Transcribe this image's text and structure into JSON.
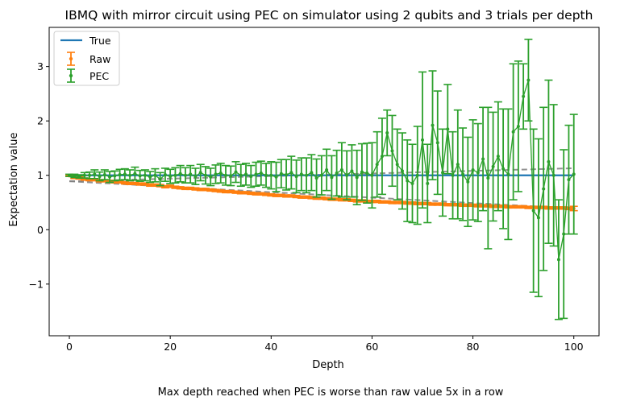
{
  "chart_data": {
    "type": "line",
    "title": "IBMQ with mirror circuit using PEC on simulator using 2 qubits and 3 trials per depth",
    "xlabel": "Depth",
    "ylabel": "Expectation value",
    "caption": "Max depth reached when PEC is worse than raw value 5x in a row",
    "xlim": [
      -4,
      105
    ],
    "ylim": [
      -1.95,
      3.72
    ],
    "xticks": [
      0,
      20,
      40,
      60,
      80,
      100
    ],
    "yticks": [
      -1,
      0,
      1,
      2,
      3
    ],
    "ytick_labels": [
      "−1",
      "0",
      "1",
      "2",
      "3"
    ],
    "legend": {
      "position": "top-left",
      "entries": [
        "True",
        "Raw",
        "PEC"
      ]
    },
    "colors": {
      "true": "#1f77b4",
      "raw": "#ff7f0e",
      "pec": "#2ca02c",
      "fit": "#7f7f7f"
    },
    "series": [
      {
        "name": "True",
        "kind": "line",
        "x": [
          0,
          100
        ],
        "y": [
          1.0,
          1.0
        ]
      },
      {
        "name": "Raw",
        "kind": "errorbar",
        "x": [
          0,
          1,
          2,
          3,
          4,
          5,
          6,
          7,
          8,
          9,
          10,
          11,
          12,
          13,
          14,
          15,
          16,
          17,
          18,
          19,
          20,
          21,
          22,
          23,
          24,
          25,
          26,
          27,
          28,
          29,
          30,
          31,
          32,
          33,
          34,
          35,
          36,
          37,
          38,
          39,
          40,
          41,
          42,
          43,
          44,
          45,
          46,
          47,
          48,
          49,
          50,
          51,
          52,
          53,
          54,
          55,
          56,
          57,
          58,
          59,
          60,
          61,
          62,
          63,
          64,
          65,
          66,
          67,
          68,
          69,
          70,
          71,
          72,
          73,
          74,
          75,
          76,
          77,
          78,
          79,
          80,
          81,
          82,
          83,
          84,
          85,
          86,
          87,
          88,
          89,
          90,
          91,
          92,
          93,
          94,
          95,
          96,
          97,
          98,
          99,
          100
        ],
        "y": [
          0.99,
          0.96,
          0.95,
          0.93,
          0.92,
          0.92,
          0.9,
          0.9,
          0.89,
          0.88,
          0.88,
          0.86,
          0.85,
          0.85,
          0.84,
          0.84,
          0.82,
          0.82,
          0.81,
          0.79,
          0.8,
          0.78,
          0.77,
          0.76,
          0.76,
          0.75,
          0.74,
          0.74,
          0.73,
          0.72,
          0.71,
          0.7,
          0.7,
          0.69,
          0.68,
          0.68,
          0.67,
          0.66,
          0.66,
          0.65,
          0.64,
          0.63,
          0.63,
          0.62,
          0.62,
          0.61,
          0.6,
          0.6,
          0.59,
          0.58,
          0.58,
          0.57,
          0.56,
          0.56,
          0.55,
          0.55,
          0.54,
          0.53,
          0.53,
          0.52,
          0.52,
          0.52,
          0.51,
          0.51,
          0.5,
          0.5,
          0.5,
          0.49,
          0.49,
          0.48,
          0.48,
          0.48,
          0.47,
          0.47,
          0.47,
          0.46,
          0.46,
          0.46,
          0.45,
          0.45,
          0.45,
          0.44,
          0.44,
          0.44,
          0.43,
          0.43,
          0.43,
          0.42,
          0.42,
          0.42,
          0.42,
          0.41,
          0.41,
          0.41,
          0.41,
          0.4,
          0.4,
          0.4,
          0.4,
          0.39,
          0.39
        ],
        "err": [
          0.01,
          0.02,
          0.02,
          0.02,
          0.02,
          0.02,
          0.02,
          0.02,
          0.02,
          0.02,
          0.02,
          0.02,
          0.02,
          0.02,
          0.02,
          0.02,
          0.02,
          0.02,
          0.02,
          0.02,
          0.02,
          0.02,
          0.02,
          0.02,
          0.02,
          0.02,
          0.02,
          0.02,
          0.02,
          0.02,
          0.02,
          0.02,
          0.02,
          0.02,
          0.02,
          0.02,
          0.02,
          0.02,
          0.02,
          0.02,
          0.02,
          0.02,
          0.02,
          0.02,
          0.02,
          0.02,
          0.02,
          0.02,
          0.02,
          0.02,
          0.02,
          0.02,
          0.02,
          0.02,
          0.02,
          0.02,
          0.02,
          0.02,
          0.02,
          0.02,
          0.02,
          0.02,
          0.02,
          0.02,
          0.02,
          0.02,
          0.02,
          0.02,
          0.02,
          0.02,
          0.02,
          0.02,
          0.02,
          0.02,
          0.02,
          0.02,
          0.02,
          0.02,
          0.02,
          0.02,
          0.02,
          0.02,
          0.02,
          0.02,
          0.02,
          0.02,
          0.02,
          0.02,
          0.02,
          0.02,
          0.02,
          0.02,
          0.02,
          0.02,
          0.02,
          0.02,
          0.02,
          0.02,
          0.02,
          0.02,
          0.04
        ]
      },
      {
        "name": "PEC",
        "kind": "errorbar",
        "x": [
          0,
          1,
          2,
          3,
          4,
          5,
          6,
          7,
          8,
          9,
          10,
          11,
          12,
          13,
          14,
          15,
          16,
          17,
          18,
          19,
          20,
          21,
          22,
          23,
          24,
          25,
          26,
          27,
          28,
          29,
          30,
          31,
          32,
          33,
          34,
          35,
          36,
          37,
          38,
          39,
          40,
          41,
          42,
          43,
          44,
          45,
          46,
          47,
          48,
          49,
          50,
          51,
          52,
          53,
          54,
          55,
          56,
          57,
          58,
          59,
          60,
          61,
          62,
          63,
          64,
          65,
          66,
          67,
          68,
          69,
          70,
          71,
          72,
          73,
          74,
          75,
          76,
          77,
          78,
          79,
          80,
          81,
          82,
          83,
          84,
          85,
          86,
          87,
          88,
          89,
          90,
          91,
          92,
          93,
          94,
          95,
          96,
          97,
          98,
          99,
          100
        ],
        "y": [
          1.0,
          0.99,
          0.98,
          1.0,
          1.0,
          1.02,
          0.98,
          1.01,
          0.97,
          0.99,
          1.01,
          1.02,
          1.0,
          1.03,
          0.99,
          1.0,
          0.97,
          1.0,
          0.93,
          1.01,
          0.98,
          1.0,
          1.03,
          1.0,
          1.02,
          0.98,
          1.05,
          1.0,
          0.97,
          1.02,
          1.04,
          1.0,
          0.99,
          1.06,
          1.0,
          1.02,
          0.98,
          1.02,
          1.04,
          1.0,
          1.0,
          0.97,
          1.03,
          1.01,
          1.05,
          0.98,
          1.02,
          1.0,
          1.05,
          0.95,
          1.0,
          1.1,
          0.96,
          1.04,
          1.1,
          1.0,
          1.08,
          0.96,
          1.06,
          1.04,
          1.0,
          1.2,
          1.35,
          1.78,
          1.45,
          1.2,
          1.08,
          0.9,
          0.85,
          1.0,
          1.65,
          0.85,
          1.92,
          1.6,
          1.05,
          1.85,
          1.0,
          1.2,
          1.02,
          0.88,
          1.1,
          1.05,
          1.3,
          0.95,
          1.16,
          1.35,
          1.12,
          1.02,
          1.8,
          1.9,
          2.45,
          2.75,
          0.35,
          0.22,
          0.75,
          1.25,
          1.0,
          -0.55,
          -0.08,
          0.92,
          1.02
        ],
        "err": [
          0.02,
          0.03,
          0.03,
          0.05,
          0.06,
          0.08,
          0.08,
          0.09,
          0.1,
          0.09,
          0.1,
          0.1,
          0.1,
          0.12,
          0.1,
          0.1,
          0.1,
          0.12,
          0.12,
          0.12,
          0.13,
          0.14,
          0.15,
          0.14,
          0.16,
          0.15,
          0.15,
          0.16,
          0.16,
          0.17,
          0.18,
          0.18,
          0.18,
          0.19,
          0.2,
          0.2,
          0.2,
          0.22,
          0.22,
          0.22,
          0.25,
          0.27,
          0.26,
          0.28,
          0.3,
          0.3,
          0.3,
          0.32,
          0.33,
          0.35,
          0.36,
          0.38,
          0.4,
          0.42,
          0.5,
          0.45,
          0.48,
          0.5,
          0.52,
          0.55,
          0.6,
          0.6,
          0.7,
          0.42,
          0.65,
          0.65,
          0.7,
          0.75,
          0.72,
          0.9,
          1.25,
          0.72,
          1.0,
          0.95,
          0.8,
          0.82,
          0.8,
          1.0,
          0.85,
          0.82,
          0.92,
          0.9,
          0.95,
          1.3,
          1.0,
          1.0,
          1.1,
          1.2,
          1.25,
          1.2,
          0.6,
          0.75,
          1.5,
          1.45,
          1.5,
          1.5,
          1.3,
          1.1,
          1.55,
          1.0,
          1.1
        ]
      },
      {
        "name": "",
        "kind": "fit",
        "style": "dashed",
        "x": [
          0,
          100
        ],
        "y": [
          0.89,
          0.39
        ]
      },
      {
        "name": "",
        "kind": "fit",
        "style": "dashed",
        "x": [
          0,
          100
        ],
        "y": [
          0.89,
          1.13
        ]
      }
    ]
  }
}
